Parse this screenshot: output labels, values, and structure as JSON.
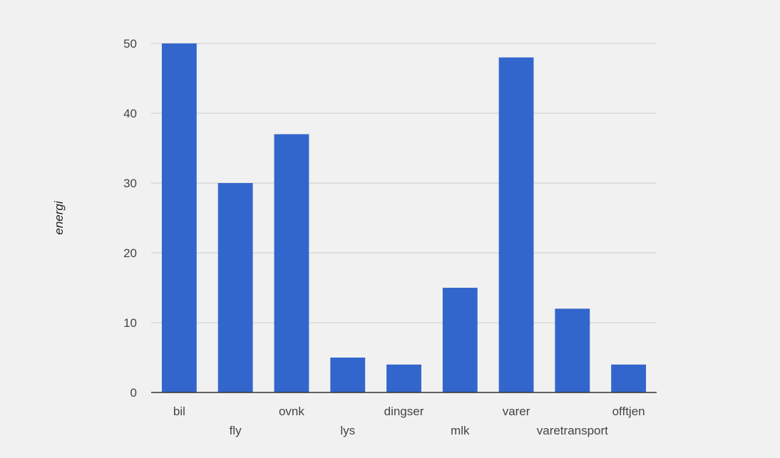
{
  "chart_data": {
    "type": "bar",
    "title": "",
    "xlabel": "",
    "ylabel": "energi",
    "categories": [
      "bil",
      "fly",
      "ovnk",
      "lys",
      "dingser",
      "mlk",
      "varer",
      "varetransport",
      "offtjen"
    ],
    "values": [
      50,
      30,
      37,
      5,
      4,
      15,
      48,
      12,
      4
    ],
    "ylim": [
      0,
      50
    ],
    "yticks": [
      0,
      10,
      20,
      30,
      40,
      50
    ],
    "grid": true,
    "legend": "none",
    "colors": {
      "bar": "#3366cc",
      "background": "#f1f1f1",
      "gridline": "#cccccc",
      "baseline": "#333333",
      "tick_label": "#444444"
    }
  }
}
